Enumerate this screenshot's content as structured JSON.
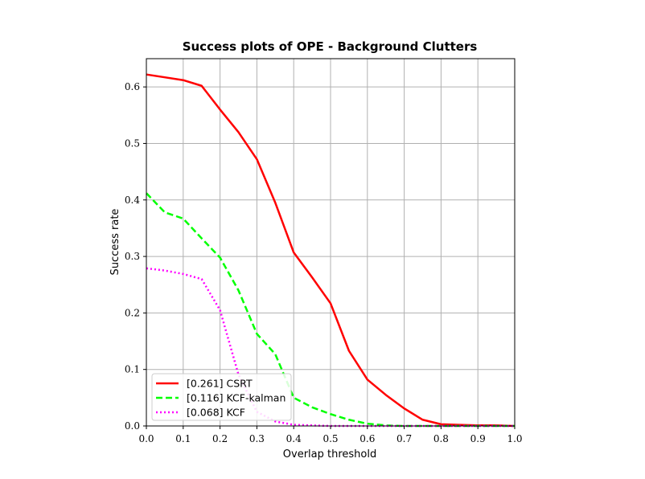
{
  "chart_data": {
    "type": "line",
    "title": "Success plots of OPE - Background Clutters",
    "xlabel": "Overlap threshold",
    "ylabel": "Success rate",
    "xlim": [
      0.0,
      1.0
    ],
    "ylim": [
      0.0,
      0.65
    ],
    "xticks": [
      "0.0",
      "0.1",
      "0.2",
      "0.3",
      "0.4",
      "0.5",
      "0.6",
      "0.7",
      "0.8",
      "0.9",
      "1.0"
    ],
    "yticks": [
      "0.0",
      "0.1",
      "0.2",
      "0.3",
      "0.4",
      "0.5",
      "0.6"
    ],
    "grid": true,
    "legend_position": "lower-left",
    "x": [
      0.0,
      0.05,
      0.1,
      0.15,
      0.2,
      0.25,
      0.3,
      0.35,
      0.4,
      0.45,
      0.5,
      0.55,
      0.6,
      0.65,
      0.7,
      0.75,
      0.8,
      0.85,
      0.9,
      0.95,
      1.0
    ],
    "series": [
      {
        "name": "[0.261] CSRT",
        "color": "#ff0000",
        "style": "solid",
        "values": [
          0.622,
          0.617,
          0.612,
          0.602,
          0.56,
          0.52,
          0.472,
          0.395,
          0.307,
          0.263,
          0.217,
          0.133,
          0.082,
          0.055,
          0.031,
          0.011,
          0.003,
          0.002,
          0.001,
          0.001,
          0.0
        ]
      },
      {
        "name": "[0.116] KCF-kalman",
        "color": "#00ff00",
        "style": "dashed",
        "values": [
          0.412,
          0.378,
          0.367,
          0.332,
          0.298,
          0.24,
          0.163,
          0.127,
          0.05,
          0.033,
          0.021,
          0.011,
          0.004,
          0.001,
          0.0,
          0.0,
          0.0,
          0.0,
          0.0,
          0.0,
          0.0
        ]
      },
      {
        "name": "[0.068] KCF",
        "color": "#ff00ff",
        "style": "dotted",
        "values": [
          0.279,
          0.275,
          0.269,
          0.26,
          0.205,
          0.091,
          0.025,
          0.008,
          0.002,
          0.001,
          0.0,
          0.0,
          0.0,
          0.0,
          0.0,
          0.0,
          0.0,
          0.0,
          0.0,
          0.0,
          0.0
        ]
      }
    ]
  }
}
